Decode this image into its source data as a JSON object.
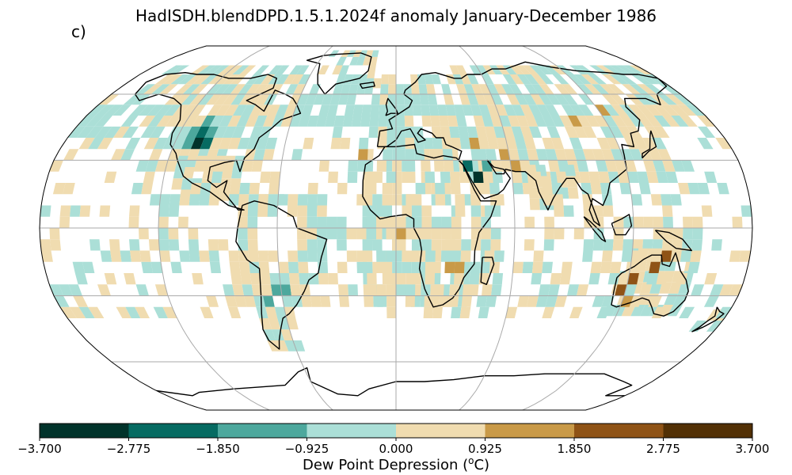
{
  "title": "HadISDH.blendDPD.1.5.1.2024f anomaly January-December 1986",
  "panel_label": "c)",
  "colorbar": {
    "label_text": "Dew Point Depression (",
    "label_unit": "o",
    "label_suffix": "C)",
    "ticks": [
      "−3.700",
      "−2.775",
      "−1.850",
      "−0.925",
      "0.000",
      "0.925",
      "1.850",
      "2.775",
      "3.700"
    ],
    "colors": [
      "#01332b",
      "#066b62",
      "#4da89d",
      "#abdfd7",
      "#f0dcb0",
      "#c99a48",
      "#8f5316",
      "#523005"
    ]
  },
  "chart_data": {
    "type": "heatmap",
    "projection": "Robinson",
    "variable": "Dew Point Depression anomaly",
    "units": "degC",
    "period": "January-December 1986",
    "range": [
      -3.7,
      3.7
    ],
    "bins": [
      -3.7,
      -2.775,
      -1.85,
      -0.925,
      0.0,
      0.925,
      1.85,
      2.775,
      3.7
    ],
    "features": {
      "negative_hotspots": [
        {
          "region": "Western USA (Rockies)",
          "lon": -108,
          "lat": 37,
          "level": "-3.700 to -2.775"
        },
        {
          "region": "Arabian Peninsula",
          "lon": 42,
          "lat": 25,
          "level": "-3.700 to -2.775"
        },
        {
          "region": "Southern South America",
          "lon": -62,
          "lat": -30,
          "level": "-1.850 to -0.925"
        }
      ],
      "positive_hotspots": [
        {
          "region": "Western Australia",
          "lon": 118,
          "lat": -28,
          "level": "1.850 to 2.775"
        },
        {
          "region": "Northern Australia",
          "lon": 133,
          "lat": -18,
          "level": "1.850 to 2.775"
        },
        {
          "region": "Southeast Africa",
          "lon": 30,
          "lat": -18,
          "level": "0.925 to 1.850"
        }
      ]
    }
  }
}
